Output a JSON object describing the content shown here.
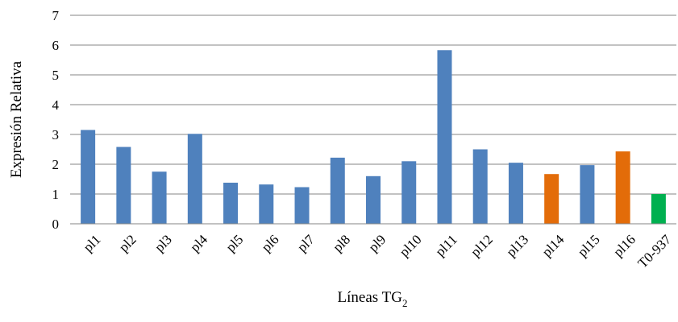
{
  "chart_data": {
    "type": "bar",
    "categories": [
      "pl1",
      "pl2",
      "pl3",
      "pl4",
      "pl5",
      "pl6",
      "pl7",
      "pl8",
      "pl9",
      "pl10",
      "pl11",
      "pl12",
      "pl13",
      "pl14",
      "pl15",
      "pl16",
      "T0-937"
    ],
    "values": [
      3.15,
      2.58,
      1.75,
      3.02,
      1.38,
      1.32,
      1.23,
      2.22,
      1.6,
      2.1,
      5.83,
      2.5,
      2.05,
      1.67,
      1.97,
      2.43,
      1.0
    ],
    "colors": [
      "#4f81bd",
      "#4f81bd",
      "#4f81bd",
      "#4f81bd",
      "#4f81bd",
      "#4f81bd",
      "#4f81bd",
      "#4f81bd",
      "#4f81bd",
      "#4f81bd",
      "#4f81bd",
      "#4f81bd",
      "#4f81bd",
      "#e36c09",
      "#4f81bd",
      "#e36c09",
      "#00b050"
    ],
    "xlabel": "Líneas TG",
    "xlabel_subscript": "2",
    "ylabel": "Expresión Relativa",
    "ylim": [
      0,
      7
    ],
    "yticks": [
      0,
      1,
      2,
      3,
      4,
      5,
      6,
      7
    ],
    "grid": true
  }
}
